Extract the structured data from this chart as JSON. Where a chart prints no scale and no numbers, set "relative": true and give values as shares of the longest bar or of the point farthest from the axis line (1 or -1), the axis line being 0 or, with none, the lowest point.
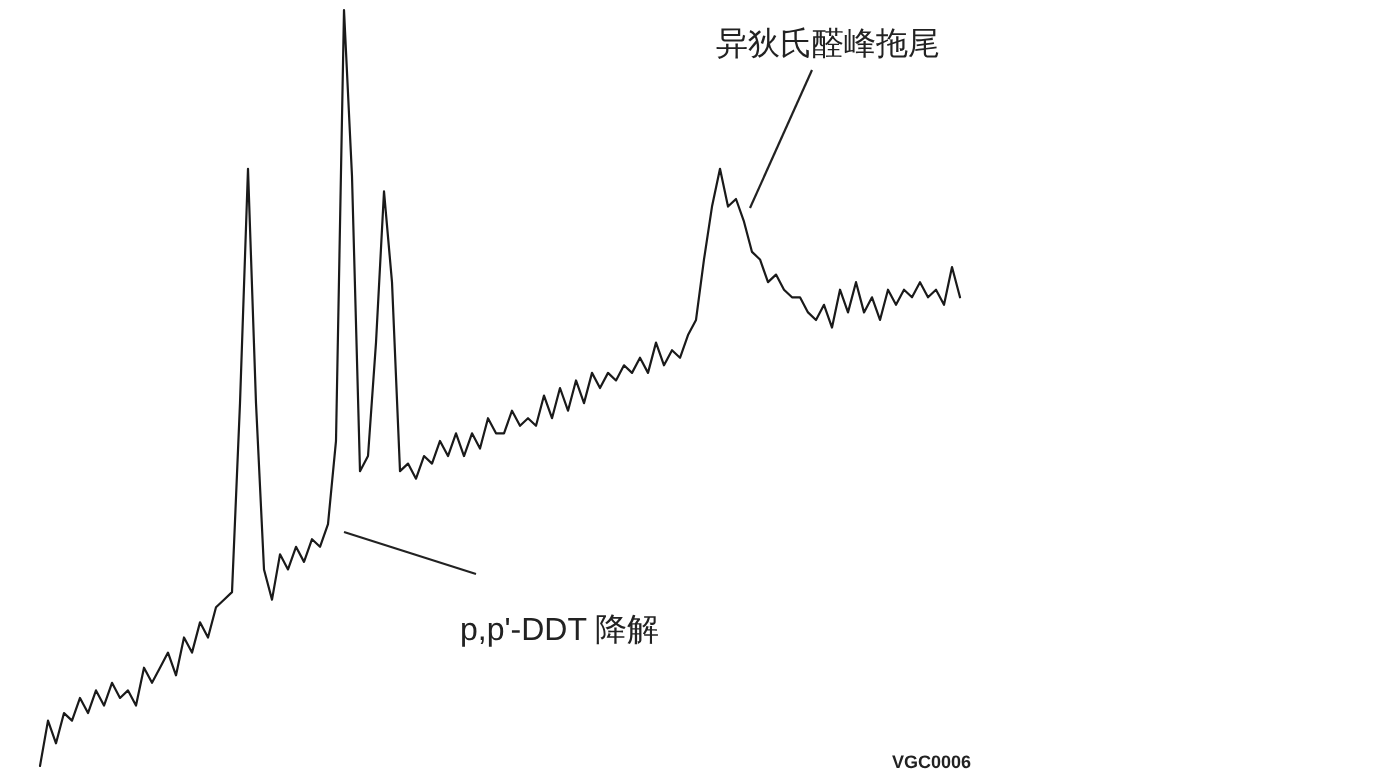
{
  "chart_data": {
    "type": "line",
    "relative": true,
    "annotations": [
      "异狄氏醛峰拖尾",
      "p,p'-DDT 降解",
      "VGC0006"
    ],
    "categories": [
      null,
      null,
      null,
      null,
      null,
      null,
      null,
      null,
      null,
      null,
      null,
      null,
      null,
      null,
      null,
      null,
      null,
      null,
      null,
      null,
      null,
      null,
      null,
      null,
      null,
      null,
      null,
      null,
      null,
      null,
      null,
      null,
      null,
      null,
      null,
      null,
      null,
      null,
      null,
      null,
      null,
      null,
      null,
      null,
      null,
      null,
      null,
      null,
      null,
      null,
      null,
      null,
      null,
      null,
      null,
      null,
      null,
      null,
      null,
      null,
      null,
      null,
      null,
      null,
      null,
      null,
      null,
      null,
      null,
      null,
      null,
      null,
      null,
      null,
      null,
      null,
      null,
      null,
      null,
      null,
      null,
      null,
      null,
      null,
      null,
      null,
      null,
      null,
      null,
      null,
      null,
      null,
      null,
      null,
      null,
      null,
      null,
      null,
      null,
      null,
      null,
      null,
      null,
      null,
      null,
      null,
      null,
      null,
      null,
      null,
      null,
      null,
      null,
      null,
      null,
      null
    ],
    "series": [
      {
        "color": "#1a1a1a",
        "values": [
          0,
          0.06,
          0.03,
          0.07,
          0.06,
          0.09,
          0.07,
          0.1,
          0.08,
          0.11,
          0.09,
          0.1,
          0.08,
          0.13,
          0.11,
          0.13,
          0.15,
          0.12,
          0.17,
          0.15,
          0.19,
          0.17,
          0.21,
          0.22,
          0.23,
          0.48,
          0.79,
          0.48,
          0.26,
          0.22,
          0.28,
          0.26,
          0.29,
          0.27,
          0.3,
          0.29,
          0.32,
          0.43,
          1.0,
          0.78,
          0.39,
          0.41,
          0.56,
          0.76,
          0.64,
          0.39,
          0.4,
          0.38,
          0.41,
          0.4,
          0.43,
          0.41,
          0.44,
          0.41,
          0.44,
          0.42,
          0.46,
          0.44,
          0.44,
          0.47,
          0.45,
          0.46,
          0.45,
          0.49,
          0.46,
          0.5,
          0.47,
          0.51,
          0.48,
          0.52,
          0.5,
          0.52,
          0.51,
          0.53,
          0.52,
          0.54,
          0.52,
          0.56,
          0.53,
          0.55,
          0.54,
          0.57,
          0.59,
          0.67,
          0.74,
          0.79,
          0.74,
          0.75,
          0.72,
          0.68,
          0.67,
          0.64,
          0.65,
          0.63,
          0.62,
          0.62,
          0.6,
          0.59,
          0.61,
          0.58,
          0.63,
          0.6,
          0.64,
          0.6,
          0.62,
          0.59,
          0.63,
          0.61,
          0.63,
          0.62,
          0.64,
          0.62,
          0.63,
          0.61,
          0.66,
          0.62
        ]
      }
    ]
  }
}
